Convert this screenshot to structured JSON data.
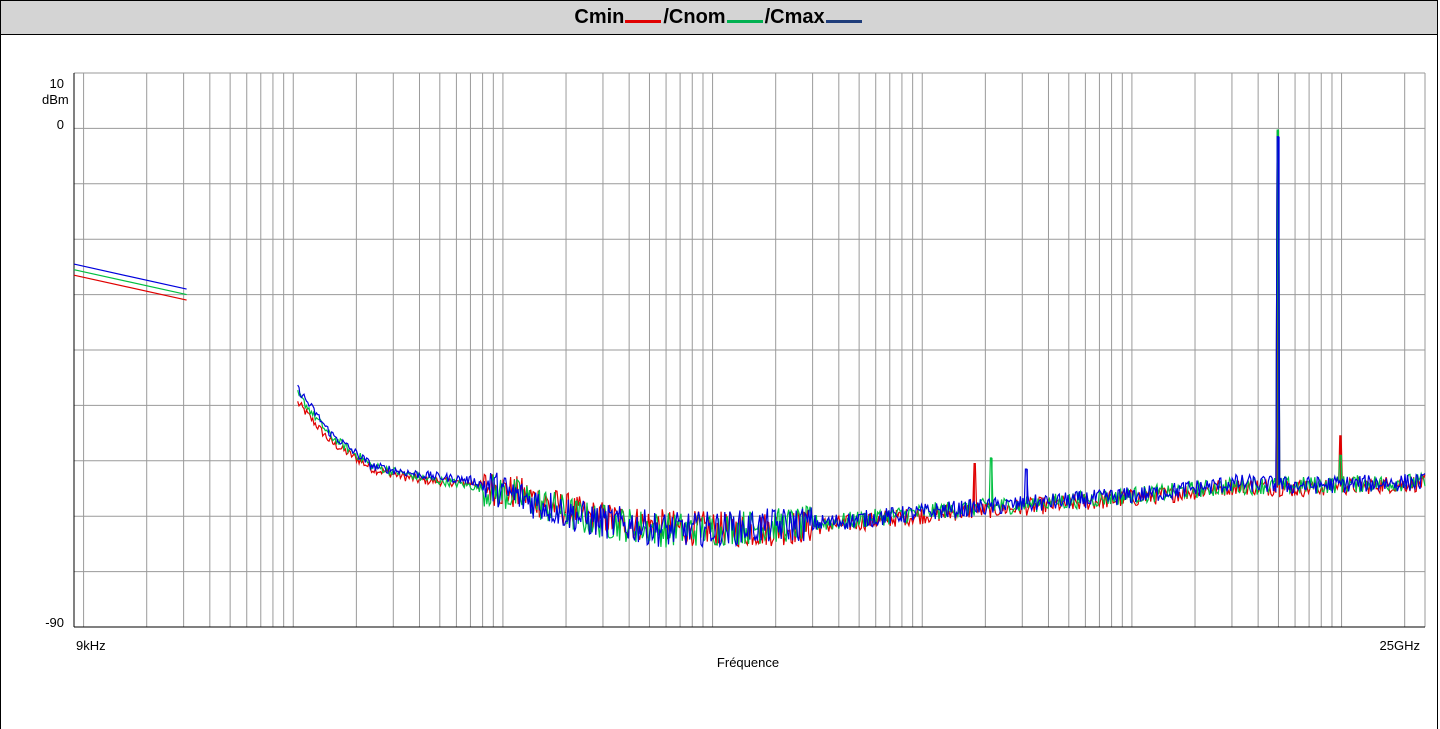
{
  "title": {
    "segments": [
      {
        "text": "Cmin",
        "color": "#e00000"
      },
      {
        "text": "/Cnom",
        "color": "#00b050"
      },
      {
        "text": "/Cmax",
        "color": "#1f3d7a"
      }
    ]
  },
  "colors": {
    "cmin": "#e00000",
    "cnom": "#00c040",
    "cmax": "#0000dd",
    "grid": "#9a9a9a",
    "title_bg": "#d4d4d4"
  },
  "chart_data": {
    "type": "line",
    "title": "Cmin /Cnom /Cmax",
    "xlabel": "Fréquence",
    "ylabel": "dBm",
    "x_scale": "log",
    "xlim": [
      9000,
      25000000000
    ],
    "ylim": [
      -90,
      10
    ],
    "x_tick_labels": [
      "9kHz",
      "25GHz"
    ],
    "y_tick_labels": [
      "10",
      "0",
      "-90"
    ],
    "y_ticks": [
      10,
      0,
      -90
    ],
    "grid": true,
    "legend_position": "title",
    "series": [
      {
        "name": "Cmin",
        "color": "#e00000",
        "segments": [
          [
            [
              9000,
              -26.5
            ],
            [
              31000,
              -31.0
            ]
          ],
          [
            [
              105000,
              -49.5
            ],
            [
              150000,
              -56.5
            ],
            [
              240000,
              -61.5
            ],
            [
              400000,
              -63.5
            ],
            [
              700000,
              -64.0
            ],
            [
              1200000,
              -66.0
            ],
            [
              2500000,
              -70.0
            ],
            [
              6000000,
              -72.0
            ],
            [
              15000000,
              -72.5
            ],
            [
              40000000,
              -71.5
            ],
            [
              120000000,
              -69.5
            ],
            [
              400000000,
              -68.0
            ],
            [
              1200000000,
              -66.5
            ],
            [
              3200000000,
              -64.5
            ],
            [
              6000000000,
              -65.0
            ],
            [
              25000000000,
              -64.0
            ]
          ]
        ],
        "peaks": [
          [
            4940000000,
            -0.5
          ],
          [
            9880000000,
            -55.5
          ],
          [
            177000000,
            -60.5
          ]
        ]
      },
      {
        "name": "Cnom",
        "color": "#00c040",
        "segments": [
          [
            [
              9000,
              -25.5
            ],
            [
              31000,
              -30.0
            ]
          ],
          [
            [
              105000,
              -48.0
            ],
            [
              150000,
              -55.5
            ],
            [
              240000,
              -61.0
            ],
            [
              400000,
              -63.0
            ],
            [
              700000,
              -64.5
            ],
            [
              1200000,
              -66.5
            ],
            [
              2500000,
              -70.5
            ],
            [
              6000000,
              -72.5
            ],
            [
              15000000,
              -72.0
            ],
            [
              40000000,
              -71.0
            ],
            [
              120000000,
              -69.0
            ],
            [
              400000000,
              -67.5
            ],
            [
              1200000000,
              -66.0
            ],
            [
              3200000000,
              -64.5
            ],
            [
              6000000000,
              -64.5
            ],
            [
              25000000000,
              -63.8
            ]
          ]
        ],
        "peaks": [
          [
            4940000000,
            -0.3
          ],
          [
            9880000000,
            -59.0
          ],
          [
            213000000,
            -59.5
          ]
        ]
      },
      {
        "name": "Cmax",
        "color": "#0000dd",
        "segments": [
          [
            [
              9000,
              -24.5
            ],
            [
              31000,
              -29.0
            ]
          ],
          [
            [
              105000,
              -47.0
            ],
            [
              150000,
              -55.0
            ],
            [
              240000,
              -61.0
            ],
            [
              400000,
              -62.5
            ],
            [
              700000,
              -63.5
            ],
            [
              1200000,
              -66.5
            ],
            [
              2500000,
              -70.5
            ],
            [
              6000000,
              -72.5
            ],
            [
              15000000,
              -72.0
            ],
            [
              40000000,
              -71.0
            ],
            [
              120000000,
              -69.0
            ],
            [
              400000000,
              -67.5
            ],
            [
              1200000000,
              -66.0
            ],
            [
              3200000000,
              -64.0
            ],
            [
              6000000000,
              -64.5
            ],
            [
              25000000000,
              -63.8
            ]
          ]
        ],
        "peaks": [
          [
            4940000000,
            -1.5
          ],
          [
            311000000,
            -61.5
          ]
        ]
      }
    ]
  }
}
